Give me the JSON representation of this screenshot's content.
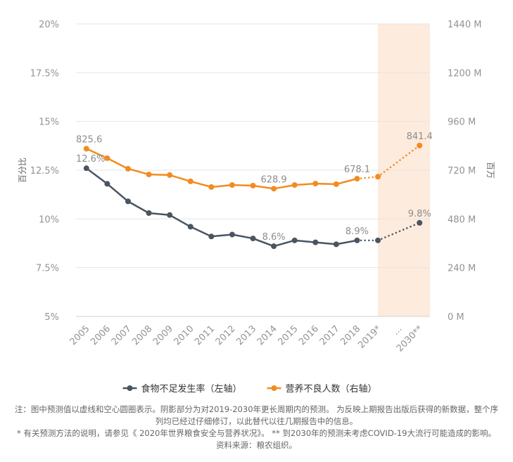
{
  "chart_data": {
    "type": "line",
    "categories": [
      "2005",
      "2006",
      "2007",
      "2008",
      "2009",
      "2010",
      "2011",
      "2012",
      "2013",
      "2014",
      "2015",
      "2016",
      "2017",
      "2018",
      "2019*",
      "...",
      "2030**"
    ],
    "y_left": {
      "title": "百分比",
      "range": [
        5,
        20
      ],
      "ticks": [
        5,
        7.5,
        10,
        12.5,
        15,
        17.5,
        20
      ],
      "tick_labels": [
        "5%",
        "7.5%",
        "10%",
        "12.5%",
        "15%",
        "17.5%",
        "20%"
      ]
    },
    "y_right": {
      "title": "百万",
      "range": [
        0,
        1440
      ],
      "ticks": [
        0,
        240,
        480,
        720,
        960,
        1200,
        1440
      ],
      "tick_labels": [
        "0 M",
        "240 M",
        "480 M",
        "720 M",
        "960 M",
        "1200 M",
        "1440 M"
      ]
    },
    "series": [
      {
        "name": "食物不足发生率（左轴）",
        "y_axis_index": 0,
        "color": "#4a5562",
        "values": [
          12.6,
          11.8,
          10.9,
          10.3,
          10.2,
          9.6,
          9.1,
          9.2,
          9.0,
          8.6,
          8.9,
          8.8,
          8.7,
          8.9,
          8.9,
          null,
          9.8
        ],
        "labels": [
          "12.6%",
          null,
          null,
          null,
          null,
          null,
          null,
          null,
          null,
          "8.6%",
          null,
          null,
          null,
          "8.9%",
          null,
          null,
          "9.8%"
        ]
      },
      {
        "name": "营养不良人数（右轴）",
        "y_axis_index": 1,
        "color": "#f38b1f",
        "values": [
          825.6,
          779,
          727,
          699,
          696,
          665,
          637,
          647,
          644,
          628.9,
          647,
          654,
          651,
          678.1,
          687.8,
          null,
          841.4
        ],
        "labels": [
          "825.6",
          null,
          null,
          null,
          null,
          null,
          null,
          null,
          null,
          "628.9",
          null,
          null,
          null,
          "678.1",
          null,
          null,
          "841.4"
        ]
      }
    ],
    "projected": [
      false,
      false,
      false,
      false,
      false,
      false,
      false,
      false,
      false,
      false,
      false,
      false,
      false,
      false,
      true,
      false,
      true
    ],
    "shaded": [
      false,
      false,
      false,
      false,
      false,
      false,
      false,
      false,
      false,
      false,
      false,
      false,
      false,
      false,
      true,
      true,
      true
    ],
    "shade_color": "#fdebdd",
    "grid": true,
    "legend": "bottom"
  },
  "notes": {
    "lines": [
      "注：图中预测值以虚线和空心圆圈表示。阴影部分为对2019-2030年更长周期内的预测。 为反映上期报告出版后获得的新数据，整个序",
      "列均已经过仔细修订，以此替代以往几期报告中的信息。",
      "* 有关预测方法的说明，请参见《 2020年世界粮食安全与营养状况》。 ** 到2030年的预测未考虑COVID-19大流行可能造成的影响。",
      "资料来源：粮农组织。"
    ]
  }
}
